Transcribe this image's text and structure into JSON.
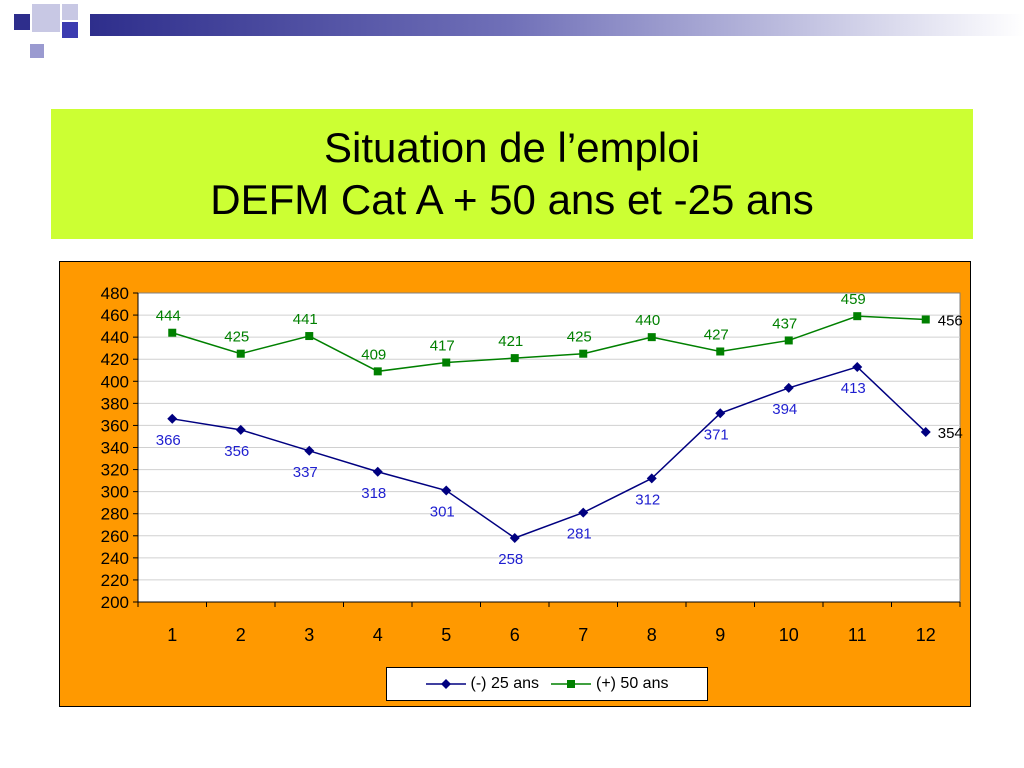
{
  "slide": {
    "title_line1": "Situation de l’emploi",
    "title_line2": "DEFM Cat A + 50 ans et -25 ans",
    "title_bg": "#ccff33",
    "chart_bg": "#ff9900"
  },
  "chart_data": {
    "type": "line",
    "x": [
      1,
      2,
      3,
      4,
      5,
      6,
      7,
      8,
      9,
      10,
      11,
      12
    ],
    "ylim": [
      200,
      480
    ],
    "yticks": [
      200,
      220,
      240,
      260,
      280,
      300,
      320,
      340,
      360,
      380,
      400,
      420,
      440,
      460,
      480
    ],
    "grid": true,
    "legend_position": "bottom",
    "series": [
      {
        "name": "(-) 25 ans",
        "marker": "diamond",
        "color": "#000080",
        "label_color": "#1f1fd0",
        "values": [
          366,
          356,
          337,
          318,
          301,
          258,
          281,
          312,
          371,
          394,
          413,
          354
        ]
      },
      {
        "name": "(+) 50 ans",
        "marker": "square",
        "color": "#008000",
        "label_color": "#008000",
        "values": [
          444,
          425,
          441,
          409,
          417,
          421,
          425,
          440,
          427,
          437,
          459,
          456
        ]
      }
    ]
  }
}
